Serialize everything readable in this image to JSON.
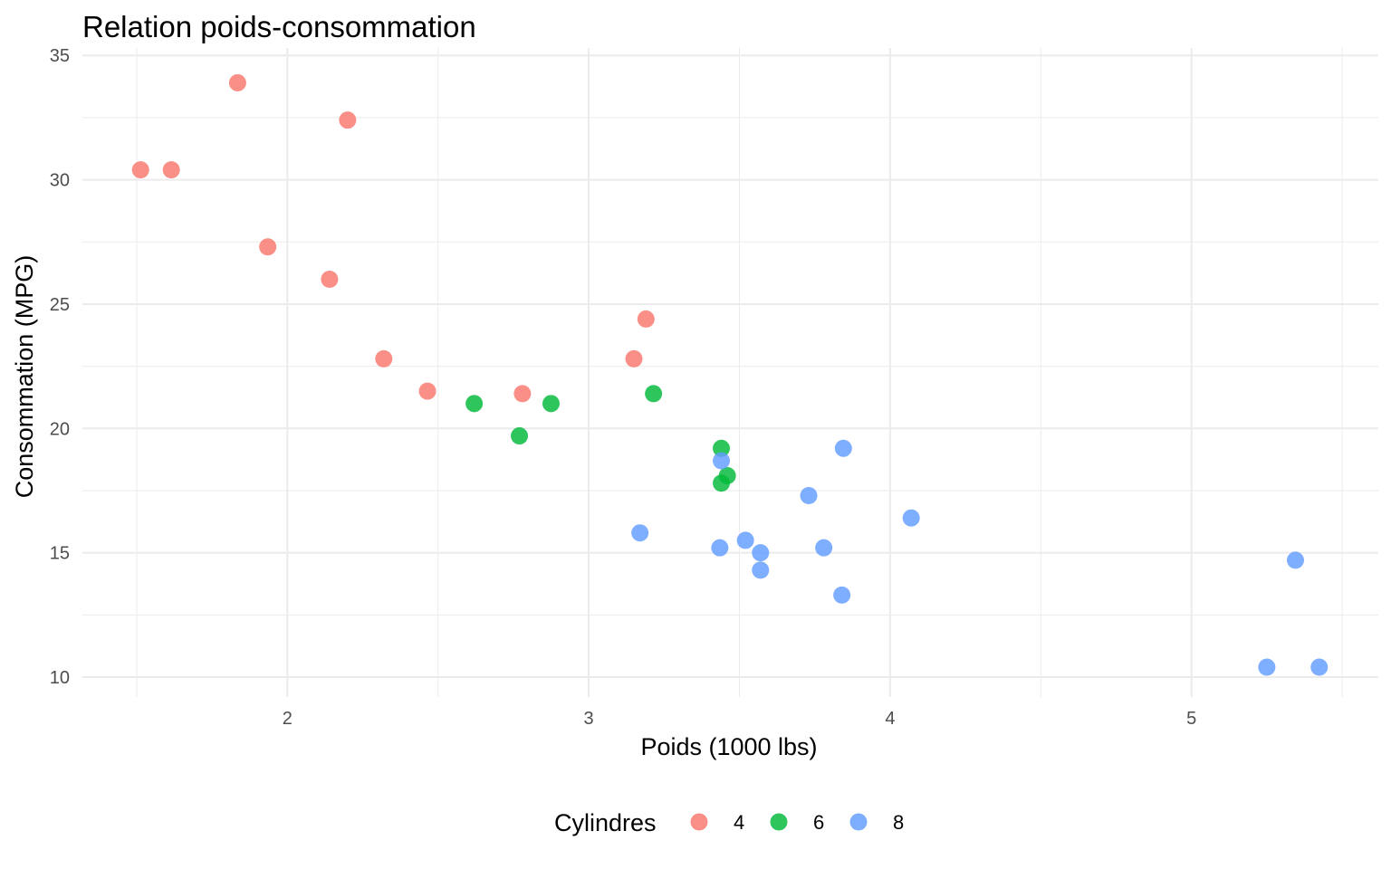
{
  "chart_data": {
    "type": "scatter",
    "title": "Relation poids-consommation",
    "xlabel": "Poids (1000 lbs)",
    "ylabel": "Consommation (MPG)",
    "xlim": [
      1.32,
      5.62
    ],
    "ylim": [
      9.2,
      35.3
    ],
    "x_ticks": [
      2,
      3,
      4,
      5
    ],
    "x_tick_labels": [
      "2",
      "3",
      "4",
      "5"
    ],
    "x_minor_ticks": [
      1.5,
      2.5,
      3.5,
      4.5,
      5.5
    ],
    "y_ticks": [
      10,
      15,
      20,
      25,
      30,
      35
    ],
    "y_tick_labels": [
      "10",
      "15",
      "20",
      "25",
      "30",
      "35"
    ],
    "y_minor_ticks": [
      12.5,
      17.5,
      22.5,
      27.5,
      32.5
    ],
    "grid": true,
    "legend": {
      "title": "Cylindres",
      "position": "bottom"
    },
    "series": [
      {
        "name": "4",
        "color": "#F8766D",
        "points": [
          [
            2.32,
            22.8
          ],
          [
            3.19,
            24.4
          ],
          [
            3.15,
            22.8
          ],
          [
            2.2,
            32.4
          ],
          [
            1.615,
            30.4
          ],
          [
            1.835,
            33.9
          ],
          [
            2.465,
            21.5
          ],
          [
            1.935,
            27.3
          ],
          [
            2.14,
            26.0
          ],
          [
            1.513,
            30.4
          ],
          [
            2.78,
            21.4
          ]
        ]
      },
      {
        "name": "6",
        "color": "#00BA38",
        "points": [
          [
            2.62,
            21.0
          ],
          [
            2.875,
            21.0
          ],
          [
            3.215,
            21.4
          ],
          [
            3.46,
            18.1
          ],
          [
            3.44,
            19.2
          ],
          [
            3.44,
            17.8
          ],
          [
            2.77,
            19.7
          ]
        ]
      },
      {
        "name": "8",
        "color": "#619CFF",
        "points": [
          [
            3.44,
            18.7
          ],
          [
            3.57,
            14.3
          ],
          [
            4.07,
            16.4
          ],
          [
            3.73,
            17.3
          ],
          [
            3.78,
            15.2
          ],
          [
            5.25,
            10.4
          ],
          [
            5.424,
            10.4
          ],
          [
            5.345,
            14.7
          ],
          [
            3.52,
            15.5
          ],
          [
            3.435,
            15.2
          ],
          [
            3.84,
            13.3
          ],
          [
            3.845,
            19.2
          ],
          [
            3.17,
            15.8
          ],
          [
            3.57,
            15.0
          ]
        ]
      }
    ]
  }
}
